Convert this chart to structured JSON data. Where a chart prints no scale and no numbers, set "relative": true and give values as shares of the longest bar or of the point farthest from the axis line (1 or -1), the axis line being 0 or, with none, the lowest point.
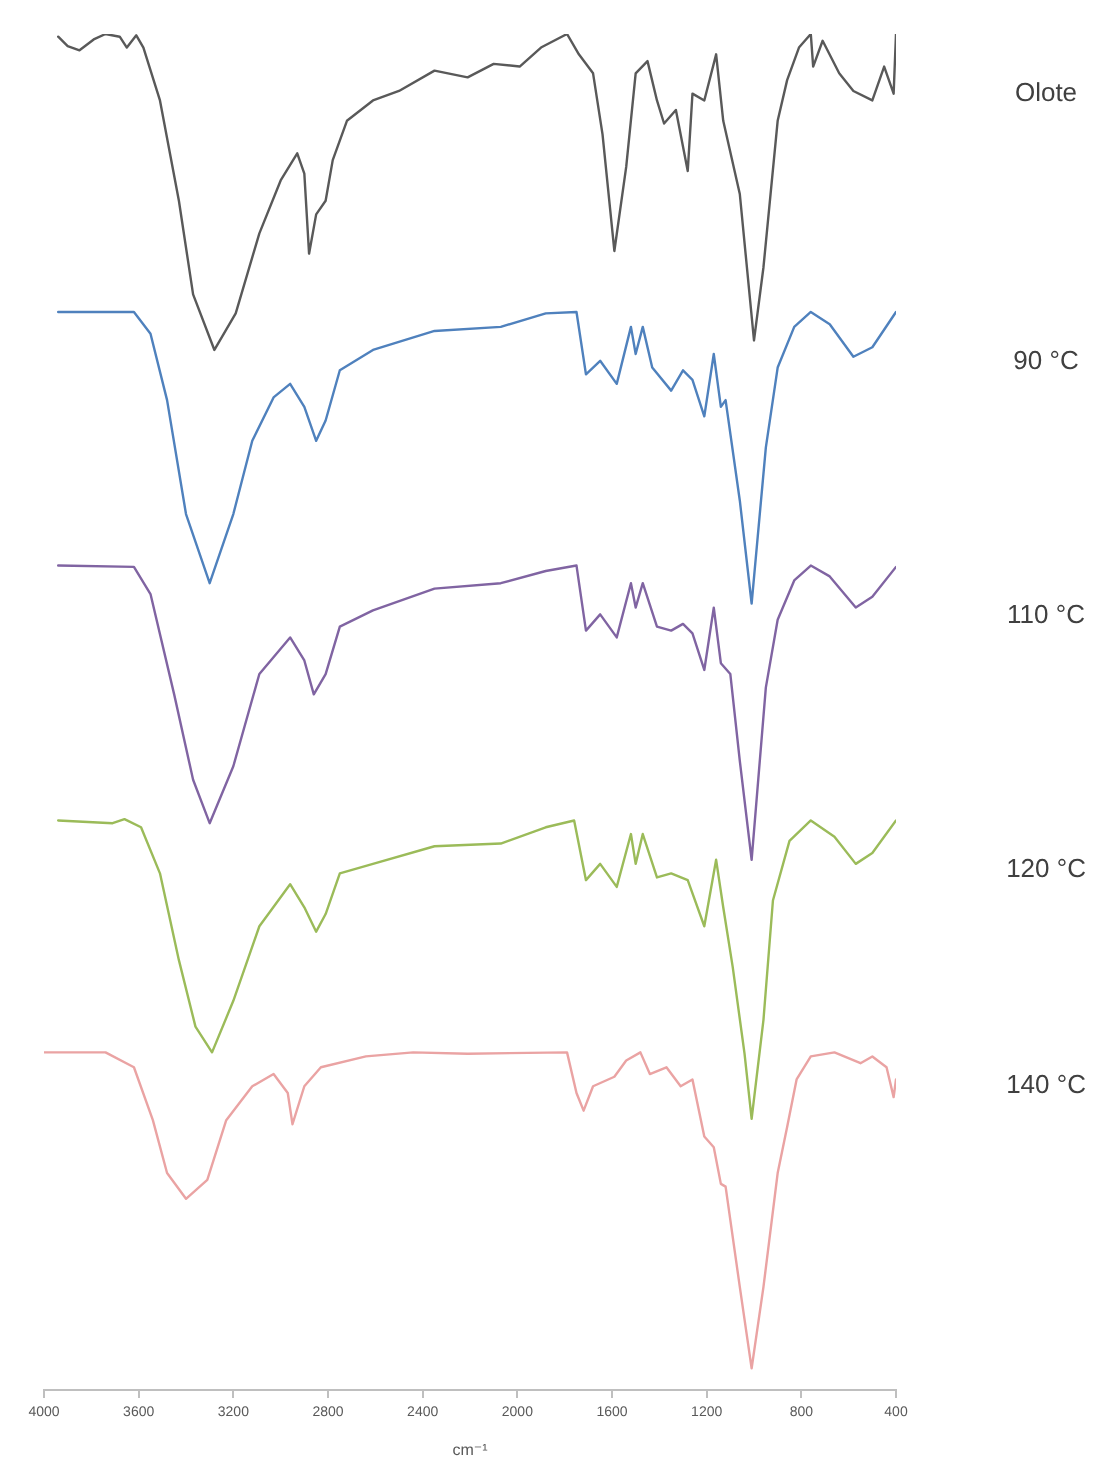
{
  "chart_data": {
    "type": "line",
    "relative": true,
    "xlabel": "cm⁻¹",
    "xlim": [
      4000,
      400
    ],
    "xticks": [
      4000,
      3600,
      3200,
      2800,
      2400,
      2000,
      1600,
      1200,
      800,
      400
    ],
    "series": [
      {
        "name": "Olote",
        "color": "#595959",
        "x": [
          3940,
          3900,
          3850,
          3790,
          3740,
          3680,
          3650,
          3610,
          3580,
          3510,
          3430,
          3370,
          3280,
          3190,
          3090,
          3000,
          2930,
          2900,
          2880,
          2850,
          2810,
          2780,
          2720,
          2610,
          2500,
          2350,
          2210,
          2100,
          1990,
          1900,
          1790,
          1740,
          1680,
          1640,
          1590,
          1540,
          1500,
          1450,
          1410,
          1380,
          1330,
          1280,
          1260,
          1210,
          1160,
          1130,
          1060,
          1000,
          960,
          900,
          860,
          810,
          760,
          750,
          710,
          640,
          580,
          500,
          450,
          410,
          400
        ],
        "values": [
          0.998,
          0.991,
          0.988,
          0.996,
          1.0,
          0.998,
          0.99,
          0.999,
          0.99,
          0.951,
          0.877,
          0.808,
          0.767,
          0.794,
          0.853,
          0.892,
          0.912,
          0.897,
          0.838,
          0.867,
          0.877,
          0.907,
          0.936,
          0.951,
          0.958,
          0.973,
          0.968,
          0.978,
          0.976,
          0.99,
          1.0,
          0.985,
          0.971,
          0.926,
          0.84,
          0.902,
          0.971,
          0.98,
          0.951,
          0.934,
          0.944,
          0.899,
          0.956,
          0.951,
          0.985,
          0.936,
          0.882,
          0.774,
          0.828,
          0.936,
          0.966,
          0.99,
          1.0,
          0.976,
          0.995,
          0.971,
          0.958,
          0.951,
          0.976,
          0.956,
          1.0
        ]
      },
      {
        "name": "90 °C",
        "color": "#4f81bd",
        "x": [
          3940,
          3620,
          3550,
          3480,
          3400,
          3300,
          3200,
          3120,
          3030,
          2960,
          2900,
          2850,
          2810,
          2750,
          2610,
          2350,
          2070,
          1880,
          1750,
          1710,
          1650,
          1580,
          1520,
          1500,
          1470,
          1430,
          1350,
          1300,
          1260,
          1210,
          1170,
          1140,
          1120,
          1060,
          1010,
          950,
          900,
          830,
          760,
          680,
          580,
          500,
          400
        ],
        "values": [
          0.795,
          0.795,
          0.779,
          0.73,
          0.646,
          0.595,
          0.646,
          0.7,
          0.732,
          0.742,
          0.725,
          0.7,
          0.715,
          0.752,
          0.767,
          0.781,
          0.784,
          0.794,
          0.795,
          0.749,
          0.759,
          0.742,
          0.784,
          0.764,
          0.784,
          0.754,
          0.737,
          0.752,
          0.745,
          0.718,
          0.764,
          0.725,
          0.73,
          0.656,
          0.58,
          0.695,
          0.754,
          0.784,
          0.795,
          0.786,
          0.762,
          0.769,
          0.795
        ]
      },
      {
        "name": "110 °C",
        "color": "#8064a2",
        "x": [
          3940,
          3620,
          3550,
          3450,
          3370,
          3300,
          3200,
          3090,
          2960,
          2900,
          2860,
          2810,
          2750,
          2610,
          2350,
          2070,
          1880,
          1750,
          1710,
          1650,
          1580,
          1520,
          1500,
          1470,
          1410,
          1350,
          1300,
          1260,
          1210,
          1170,
          1140,
          1100,
          1060,
          1010,
          950,
          900,
          830,
          760,
          680,
          570,
          500,
          400
        ],
        "values": [
          0.608,
          0.607,
          0.587,
          0.513,
          0.45,
          0.418,
          0.46,
          0.528,
          0.555,
          0.538,
          0.513,
          0.528,
          0.563,
          0.575,
          0.591,
          0.595,
          0.604,
          0.608,
          0.56,
          0.572,
          0.555,
          0.595,
          0.577,
          0.595,
          0.563,
          0.56,
          0.565,
          0.558,
          0.531,
          0.577,
          0.536,
          0.528,
          0.464,
          0.391,
          0.518,
          0.568,
          0.597,
          0.608,
          0.6,
          0.577,
          0.585,
          0.607
        ]
      },
      {
        "name": "120 °C",
        "color": "#9bbb59",
        "x": [
          3940,
          3710,
          3660,
          3590,
          3510,
          3430,
          3360,
          3290,
          3200,
          3090,
          2960,
          2900,
          2850,
          2810,
          2750,
          2610,
          2350,
          2070,
          1880,
          1760,
          1710,
          1650,
          1580,
          1520,
          1500,
          1470,
          1410,
          1350,
          1280,
          1210,
          1160,
          1130,
          1090,
          1040,
          1010,
          960,
          920,
          850,
          760,
          660,
          570,
          500,
          400
        ],
        "values": [
          0.42,
          0.418,
          0.421,
          0.415,
          0.381,
          0.317,
          0.268,
          0.249,
          0.287,
          0.342,
          0.373,
          0.356,
          0.338,
          0.351,
          0.381,
          0.388,
          0.401,
          0.403,
          0.415,
          0.42,
          0.376,
          0.388,
          0.371,
          0.41,
          0.388,
          0.41,
          0.378,
          0.381,
          0.376,
          0.342,
          0.391,
          0.356,
          0.312,
          0.248,
          0.2,
          0.273,
          0.361,
          0.405,
          0.42,
          0.408,
          0.388,
          0.396,
          0.42
        ]
      },
      {
        "name": "140 °C",
        "color": "#eaa3a3",
        "x": [
          4000,
          3740,
          3620,
          3540,
          3480,
          3400,
          3310,
          3230,
          3120,
          3030,
          2970,
          2950,
          2900,
          2830,
          2640,
          2440,
          2210,
          1790,
          1750,
          1720,
          1680,
          1590,
          1540,
          1480,
          1440,
          1370,
          1310,
          1260,
          1210,
          1170,
          1140,
          1120,
          1060,
          1010,
          960,
          900,
          860,
          820,
          760,
          660,
          550,
          500,
          440,
          410,
          400
        ],
        "values": [
          0.249,
          0.249,
          0.238,
          0.199,
          0.16,
          0.141,
          0.155,
          0.199,
          0.224,
          0.233,
          0.219,
          0.196,
          0.224,
          0.238,
          0.246,
          0.249,
          0.248,
          0.249,
          0.219,
          0.206,
          0.224,
          0.231,
          0.243,
          0.249,
          0.233,
          0.238,
          0.224,
          0.229,
          0.187,
          0.179,
          0.152,
          0.15,
          0.076,
          0.016,
          0.076,
          0.16,
          0.194,
          0.229,
          0.246,
          0.249,
          0.241,
          0.246,
          0.238,
          0.216,
          0.229
        ]
      }
    ]
  }
}
